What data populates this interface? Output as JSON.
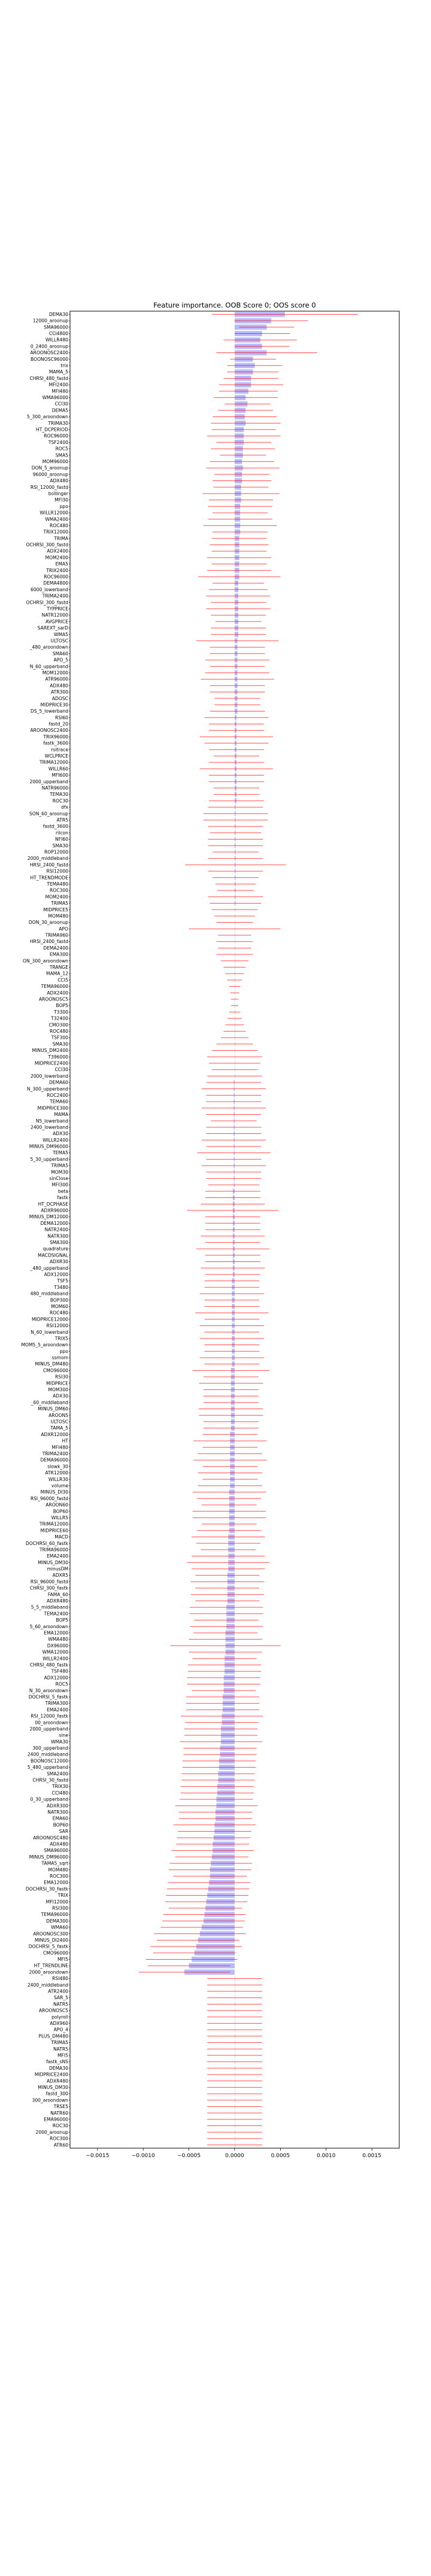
{
  "chart_data": {
    "type": "bar",
    "orientation": "horizontal",
    "title": "Feature importance. OOB Score 0; OOS score 0",
    "xlabel": "",
    "ylabel": "",
    "xlim": [
      -0.0018,
      0.0018
    ],
    "x_ticks": [
      -0.0015,
      -0.001,
      -0.0005,
      0.0,
      0.0005,
      0.001,
      0.0015
    ],
    "x_tick_labels": [
      "−0.0015",
      "−0.0010",
      "−0.0005",
      "0.0000",
      "0.0005",
      "0.0010",
      "0.0015"
    ],
    "grid": false,
    "legend": "none",
    "colors": {
      "bar": "#8080ff",
      "error": "#ff0000",
      "axes": "#000000"
    },
    "series": [
      {
        "values": [
          0.00055,
          0.0004,
          0.00035,
          0.0003,
          0.00028,
          0.0003,
          0.00035,
          0.0002,
          0.00022,
          0.0002,
          0.00018,
          0.00018,
          0.00015,
          0.00012,
          0.00014,
          0.00012,
          0.00011,
          0.00012,
          0.0001,
          0.0001,
          0.0001,
          9e-05,
          9e-05,
          8e-05,
          9e-05,
          8e-05,
          8e-05,
          7e-05,
          7e-05,
          7e-05,
          6e-05,
          6e-05,
          6e-05,
          6e-05,
          6e-05,
          5e-05,
          5e-05,
          5e-05,
          5e-05,
          5e-05,
          5e-05,
          5e-05,
          4e-05,
          4e-05,
          4e-05,
          4e-05,
          4e-05,
          4e-05,
          4e-05,
          4e-05,
          4e-05,
          3e-05,
          3e-05,
          3e-05,
          3e-05,
          3e-05,
          3e-05,
          3e-05,
          3e-05,
          3e-05,
          3e-05,
          3e-05,
          3e-05,
          2e-05,
          2e-05,
          2e-05,
          2e-05,
          2e-05,
          2e-05,
          2e-05,
          2e-05,
          2e-05,
          2e-05,
          2e-05,
          2e-05,
          2e-05,
          2e-05,
          1e-05,
          1e-05,
          1e-05,
          1e-05,
          1e-05,
          1e-05,
          1e-05,
          1e-05,
          1e-05,
          1e-05,
          1e-05,
          1e-05,
          1e-05,
          1e-05,
          1e-05,
          1e-05,
          0.0,
          0.0,
          0.0,
          0.0,
          0.0,
          0.0,
          0.0,
          0.0,
          0.0,
          0.0,
          0.0,
          0.0,
          0.0,
          0.0,
          0.0,
          0.0,
          0.0,
          0.0,
          0.0,
          0.0,
          0.0,
          0.0,
          0.0,
          0.0,
          0.0,
          0.0,
          0.0,
          -1e-05,
          -1e-05,
          -1e-05,
          -1e-05,
          -1e-05,
          -1e-05,
          -1e-05,
          -1e-05,
          -1e-05,
          -1e-05,
          -1e-05,
          -1e-05,
          -1e-05,
          -1e-05,
          -1e-05,
          -1e-05,
          -1e-05,
          -2e-05,
          -2e-05,
          -2e-05,
          -2e-05,
          -2e-05,
          -2e-05,
          -2e-05,
          -2e-05,
          -2e-05,
          -2e-05,
          -2e-05,
          -2e-05,
          -2e-05,
          -2e-05,
          -3e-05,
          -3e-05,
          -3e-05,
          -3e-05,
          -3e-05,
          -3e-05,
          -3e-05,
          -3e-05,
          -3e-05,
          -3e-05,
          -3e-05,
          -3e-05,
          -3e-05,
          -3e-05,
          -4e-05,
          -4e-05,
          -4e-05,
          -4e-05,
          -4e-05,
          -4e-05,
          -4e-05,
          -4e-05,
          -4e-05,
          -4e-05,
          -5e-05,
          -5e-05,
          -5e-05,
          -5e-05,
          -5e-05,
          -5e-05,
          -5e-05,
          -5e-05,
          -5e-05,
          -6e-05,
          -6e-05,
          -6e-05,
          -6e-05,
          -6e-05,
          -6e-05,
          -6e-05,
          -7e-05,
          -7e-05,
          -7e-05,
          -7e-05,
          -7e-05,
          -7e-05,
          -8e-05,
          -8e-05,
          -8e-05,
          -8e-05,
          -8e-05,
          -9e-05,
          -9e-05,
          -9e-05,
          -9e-05,
          -0.0001,
          -0.0001,
          -0.0001,
          -0.0001,
          -0.00011,
          -0.00011,
          -0.00011,
          -0.00012,
          -0.00012,
          -0.00012,
          -0.00013,
          -0.00013,
          -0.00013,
          -0.00014,
          -0.00014,
          -0.00015,
          -0.00015,
          -0.00015,
          -0.00016,
          -0.00016,
          -0.00017,
          -0.00017,
          -0.00018,
          -0.00018,
          -0.00019,
          -0.00019,
          -0.0002,
          -0.0002,
          -0.00021,
          -0.00021,
          -0.00022,
          -0.00022,
          -0.00023,
          -0.00024,
          -0.00024,
          -0.00025,
          -0.00026,
          -0.00027,
          -0.00027,
          -0.00028,
          -0.00029,
          -0.0003,
          -0.00031,
          -0.00032,
          -0.00033,
          -0.00034,
          -0.00036,
          -0.00038,
          -0.0004,
          -0.00042,
          -0.00044,
          -0.00047,
          -0.0005,
          -0.00055
        ],
        "errors": [
          0.0008,
          0.0004,
          0.0003,
          0.0003,
          0.0004,
          0.0003,
          0.00055,
          0.00025,
          0.0003,
          0.00028,
          0.0003,
          0.00035,
          0.00032,
          0.00035,
          0.00025,
          0.0003,
          0.00035,
          0.00038,
          0.00035,
          0.0004,
          0.0003,
          0.00035,
          0.00025,
          0.00035,
          0.0004,
          0.0003,
          0.00032,
          0.0003,
          0.00042,
          0.00035,
          0.00035,
          0.0003,
          0.00035,
          0.0004,
          0.0003,
          0.0003,
          0.00032,
          0.0003,
          0.00035,
          0.0003,
          0.00035,
          0.00045,
          0.00028,
          0.00032,
          0.00035,
          0.0003,
          0.00035,
          0.0003,
          0.00025,
          0.0003,
          0.0003,
          0.00045,
          0.0003,
          0.0003,
          0.00035,
          0.0003,
          0.00035,
          0.0004,
          0.0003,
          0.0003,
          0.00025,
          0.00025,
          0.0003,
          0.00035,
          0.0003,
          0.0003,
          0.0004,
          0.00035,
          0.0003,
          0.00025,
          0.0003,
          0.0004,
          0.0003,
          0.0003,
          0.00025,
          0.00025,
          0.0003,
          0.0003,
          0.00035,
          0.00035,
          0.0003,
          0.00028,
          0.0003,
          0.0003,
          0.00025,
          0.0003,
          0.00055,
          0.0003,
          0.00025,
          0.00022,
          0.0002,
          0.0003,
          0.00028,
          0.00025,
          0.00022,
          0.0002,
          0.0005,
          0.00018,
          0.0002,
          0.00018,
          0.0002,
          0.00015,
          0.00012,
          0.0001,
          8e-05,
          6e-05,
          5e-05,
          4e-05,
          4e-05,
          6e-05,
          8e-05,
          0.0001,
          0.00012,
          0.00015,
          0.0002,
          0.00025,
          0.0003,
          0.00028,
          0.00025,
          0.0003,
          0.0003,
          0.00035,
          0.0003,
          0.0003,
          0.00035,
          0.0003,
          0.00025,
          0.0003,
          0.0003,
          0.00035,
          0.0003,
          0.0004,
          0.0003,
          0.00035,
          0.0003,
          0.0003,
          0.00028,
          0.0003,
          0.0003,
          0.00035,
          0.0005,
          0.0003,
          0.0003,
          0.0003,
          0.00035,
          0.0003,
          0.0004,
          0.0003,
          0.0003,
          0.00035,
          0.0003,
          0.0003,
          0.0003,
          0.00035,
          0.0003,
          0.0003,
          0.0004,
          0.0003,
          0.00035,
          0.0003,
          0.00035,
          0.0003,
          0.0003,
          0.00035,
          0.0003,
          0.00042,
          0.0003,
          0.00035,
          0.0003,
          0.0003,
          0.0003,
          0.00035,
          0.00035,
          0.0003,
          0.0003,
          0.0003,
          0.0004,
          0.0003,
          0.00035,
          0.0004,
          0.0003,
          0.00035,
          0.0003,
          0.00035,
          0.0004,
          0.00035,
          0.0003,
          0.0004,
          0.0004,
          0.0003,
          0.00035,
          0.0004,
          0.00035,
          0.0003,
          0.0004,
          0.00045,
          0.0004,
          0.00035,
          0.0004,
          0.00035,
          0.0004,
          0.00035,
          0.0004,
          0.0004,
          0.00035,
          0.0004,
          0.00035,
          0.0004,
          0.0006,
          0.0004,
          0.00035,
          0.0004,
          0.0004,
          0.0004,
          0.0004,
          0.00035,
          0.0004,
          0.0004,
          0.0004,
          0.00045,
          0.0004,
          0.0004,
          0.0004,
          0.00045,
          0.0004,
          0.0004,
          0.0004,
          0.0004,
          0.0004,
          0.0004,
          0.0004,
          0.0004,
          0.0004,
          0.00045,
          0.0004,
          0.0004,
          0.00045,
          0.0004,
          0.0004,
          0.0004,
          0.00045,
          0.0004,
          0.00045,
          0.00045,
          0.0004,
          0.00045,
          0.00045,
          0.00045,
          0.00045,
          0.0004,
          0.00045,
          0.00045,
          0.00045,
          0.0005,
          0.00045,
          0.0005,
          0.00045,
          0.0005,
          0.00045,
          0.0005
        ]
      }
    ],
    "categories": [
      "DEMA30",
      "12000_aroonup",
      "SMA96000",
      "CCI4800",
      "WILLR480",
      "0_2400_aroonup",
      "AROONOSC2400",
      "BOONOSC96000",
      "trix",
      "MAMA_5",
      "CHRSI_480_fastd",
      "MFI2400",
      "MFI480",
      "WMA96000",
      "CCI30",
      "DEMA5",
      "5_300_aroondown",
      "TRIMA30",
      "HT_DCPERIOD",
      "ROC96000",
      "TSF2400",
      "ROC5",
      "SMA5",
      "MOM96000",
      "DON_5_aroonup",
      "96000_aroonup",
      "ADX480",
      "RSI_12000_fastd",
      "bollinger",
      "MFI30",
      "ppo",
      "WILLR12000",
      "WMA2400",
      "ROC480",
      "TRIX12000",
      "TRIMA",
      "OCHRSI_300_fastd",
      "ADX2400",
      "MOM2400",
      "EMA5",
      "TRIX2400",
      "ROC96000",
      "DEMA4800",
      "6000_lowerband",
      "TRIMA2400",
      "OCHRSI_300_fastd",
      "TYPPRICE",
      "NATR12000",
      "AVGPRICE",
      "SAREXT_sarD",
      "WMA5",
      "ULTOSC",
      "_480_aroondown",
      "SMA60",
      "APO_5",
      "N_60_upperband",
      "MOM12000",
      "ATR96000",
      "ADX480",
      "ATR300",
      "ADOSC",
      "MIDPRICE30",
      "DS_5_lowerband",
      "RSI60",
      "fastd_20",
      "AROONOSC2400",
      "TRIX96000",
      "fastk_3600",
      "rsitrace",
      "WCLPRICE",
      "TRIMA12000",
      "WILLR60",
      "MFI600",
      "2000_upperband",
      "NATR96000",
      "TEMA30",
      "ROC30",
      "dfx",
      "SON_60_aroonup",
      "ATR5",
      "fastd_3600",
      "rilcon",
      "NFI60",
      "SMA30",
      "ROP12000",
      "2000_middleband",
      "HRSI_2400_fastd",
      "RSI12000",
      "HT_TRENDMODE",
      "TEMA480",
      "ROC300",
      "MOM2400",
      "TRIMA5",
      "MIDPRICE5",
      "MOM480",
      "DON_30_aroonup",
      "APO",
      "TRIMA960",
      "HRSI_2400_fastd",
      "DEMA2400",
      "EMA300",
      "ON_300_aroondown",
      "TRANGE",
      "MAMA_12",
      "CCI5",
      "TEMA96000",
      "ADX2400",
      "AROONOSC5",
      "BOP5",
      "T3300",
      "T32400",
      "CMO300",
      "ROC480",
      "TSF300",
      "SMA30",
      "MINUS_DM2400",
      "T396000",
      "MIDPRICE2400",
      "CCI30",
      "2000_lowerband",
      "DEMA60",
      "N_300_upperband",
      "ROC2400",
      "TEMA60",
      "MIDPRICE300",
      "MAMA",
      "N5_lowerband",
      "2400_lowerband",
      "ADX30",
      "WILLR2400",
      "MINUS_DM96000",
      "TEMA5",
      "5_30_upperband",
      "TRIMA5",
      "MOM30",
      "sinClose",
      "MFI300",
      "beta",
      "fastk",
      "HT_DCPHASE",
      "ADXR96000",
      "MINUS_DM12000",
      "DEMA12000",
      "NATR2400",
      "NATR300",
      "SMA300",
      "quadrature",
      "MACDSIGNAL",
      "ADXR30",
      "_480_upperband",
      "ADX12000",
      "TSF5",
      "T3480",
      "480_middleband",
      "BOP300",
      "MOM60",
      "ROC480",
      "MIDPRICE12000",
      "RSI12000",
      "N_60_lowerband",
      "TRIX5",
      "MOM5_5_aroondown",
      "ppo",
      "ssmom",
      "MINUS_DM480",
      "CMO96000",
      "RSI30",
      "MIDPRICE",
      "MOM300",
      "ADX30",
      "_60_middleband",
      "MINUS_DM60",
      "AROON5",
      "ULTOSC",
      "TAMA_5",
      "ADXR12000",
      "HT",
      "MFI480",
      "TRIMA2400",
      "DEMA96000",
      "slowk_30",
      "ATR12000",
      "WILLR30",
      "volume",
      "MINUS_DI30",
      "RSI_96000_fastd",
      "AROON60",
      "BOP60",
      "WILLR5",
      "TRIMA12000",
      "MIDPRICE60",
      "MACD",
      "DOCHRSI_60_fastk",
      "TRIMA96000",
      "EMA2400",
      "MINUS_DM30",
      "minusDM",
      "ADXR5",
      "RSI_96000_fastd",
      "CHRSI_300_fastk",
      "FAMA_60",
      "ADXR480",
      "5_5_middleband",
      "TEMA2400",
      "BOP5",
      "5_60_aroondown",
      "EMA12000",
      "WMA480",
      "DX96000",
      "WMA12000",
      "WILLR2400",
      "CHRSI_480_fastk",
      "TSF480",
      "ADX12000",
      "ROC5",
      "N_30_aroondown",
      "DOCHRSI_5_fastk",
      "TRIMA300",
      "EMA2400",
      "RSI_12000_fastk",
      "00_aroondown",
      "2000_upperband",
      "sine",
      "WMA30",
      "300_upperband",
      "2400_middleband",
      "BOONOSC12000",
      "5_480_upperband",
      "SMA2400",
      "CHRSI_30_fastd",
      "TRIX30",
      "CCI480",
      "0_30_upperband",
      "ADXR300",
      "NATR300",
      "EMA60",
      "BOP60",
      "SAR",
      "AROONOSC480",
      "ADX480",
      "SMA96000",
      "MINUS_DM96000",
      "TAMA5_sqrt",
      "MOM480",
      "ROC300",
      "EMA12000",
      "DOCHRSI_30_fastk",
      "TRIX",
      "MFI12000",
      "RSI300",
      "TEMA96000",
      "DEMA300",
      "WMA60",
      "AROONOSC300",
      "MINUS_DI2400",
      "DOCHRSI_5_fastk",
      "CMO96000",
      "MFI5",
      "HT_TRENDLINE",
      "2000_aroondown"
    ],
    "extra_categories": [
      "RSI480",
      "2400_middleband",
      "ATR2400",
      "SAR_5",
      "NATR5",
      "AROONOSC5",
      "polyroll",
      "ADX960",
      "APO_4",
      "PLUS_DM480",
      "TRIMA5",
      "NATR5",
      "MFI5",
      "fastk_sNS",
      "DEMA30",
      "MIDPRICE2400",
      "ADXR480",
      "MINUS_DM30",
      "fastd_300",
      "300_aroondown",
      "TRSE5",
      "NATR60",
      "EMA96000",
      "ROC30",
      "2000_aroonup",
      "ROC300",
      "ATR60"
    ]
  }
}
